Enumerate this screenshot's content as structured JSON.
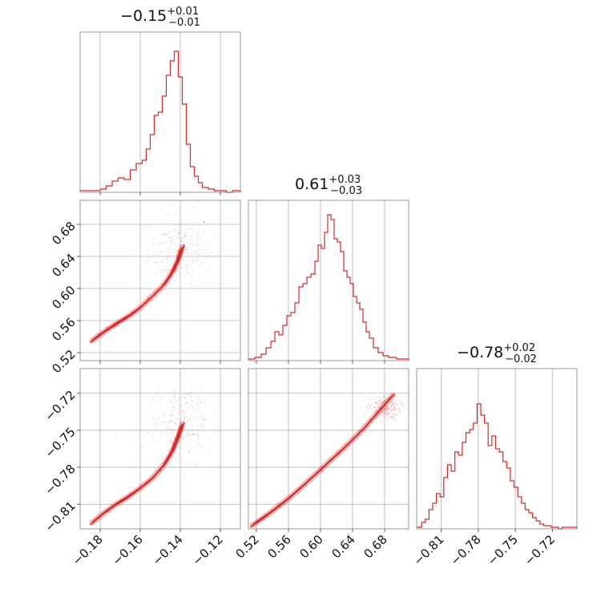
{
  "chart_data": {
    "type": "corner",
    "color": "#d62728",
    "grid": true,
    "parameters": [
      {
        "median": "−0.15",
        "plus": "+0.01",
        "minus": "−0.01",
        "range": [
          -0.19,
          -0.11
        ],
        "ticks": [
          -0.18,
          -0.16,
          -0.14,
          -0.12
        ],
        "tick_labels": [
          "−0.18",
          "−0.16",
          "−0.14",
          "−0.12"
        ],
        "hist_x": [
          -0.19,
          -0.184,
          -0.18,
          -0.177,
          -0.174,
          -0.171,
          -0.168,
          -0.165,
          -0.162,
          -0.159,
          -0.157,
          -0.155,
          -0.153,
          -0.151,
          -0.149,
          -0.147,
          -0.145,
          -0.143,
          -0.141,
          -0.139,
          -0.137,
          -0.135,
          -0.133,
          -0.131,
          -0.129,
          -0.126,
          -0.123,
          -0.12,
          -0.117,
          -0.114,
          -0.11
        ],
        "hist_y": [
          0.01,
          0.01,
          0.02,
          0.04,
          0.07,
          0.09,
          0.08,
          0.14,
          0.18,
          0.2,
          0.27,
          0.36,
          0.48,
          0.5,
          0.6,
          0.73,
          0.82,
          0.88,
          0.72,
          0.55,
          0.3,
          0.16,
          0.1,
          0.06,
          0.03,
          0.02,
          0.01,
          0.01,
          0.0,
          0.01,
          0.0
        ]
      },
      {
        "median": "0.61",
        "plus": "+0.03",
        "minus": "−0.03",
        "range": [
          0.51,
          0.71
        ],
        "ticks": [
          0.52,
          0.56,
          0.6,
          0.64,
          0.68
        ],
        "tick_labels": [
          "0.52",
          "0.56",
          "0.60",
          "0.64",
          "0.68"
        ],
        "hist_x": [
          0.51,
          0.518,
          0.526,
          0.532,
          0.538,
          0.543,
          0.548,
          0.553,
          0.558,
          0.563,
          0.568,
          0.573,
          0.578,
          0.583,
          0.588,
          0.593,
          0.597,
          0.601,
          0.605,
          0.609,
          0.613,
          0.617,
          0.621,
          0.625,
          0.629,
          0.633,
          0.637,
          0.641,
          0.645,
          0.649,
          0.653,
          0.657,
          0.661,
          0.666,
          0.672,
          0.678,
          0.685,
          0.695,
          0.71
        ],
        "hist_y": [
          0.01,
          0.02,
          0.04,
          0.08,
          0.12,
          0.18,
          0.16,
          0.22,
          0.28,
          0.3,
          0.36,
          0.46,
          0.48,
          0.52,
          0.54,
          0.62,
          0.72,
          0.7,
          0.8,
          0.91,
          0.88,
          0.76,
          0.74,
          0.68,
          0.56,
          0.52,
          0.48,
          0.4,
          0.36,
          0.32,
          0.24,
          0.18,
          0.14,
          0.08,
          0.05,
          0.03,
          0.02,
          0.01,
          0.0
        ]
      },
      {
        "median": "−0.78",
        "plus": "+0.02",
        "minus": "−0.02",
        "range": [
          -0.83,
          -0.7
        ],
        "ticks": [
          -0.81,
          -0.78,
          -0.75,
          -0.72
        ],
        "tick_labels": [
          "−0.81",
          "−0.78",
          "−0.75",
          "−0.72"
        ],
        "hist_x": [
          -0.83,
          -0.826,
          -0.823,
          -0.82,
          -0.817,
          -0.814,
          -0.811,
          -0.808,
          -0.805,
          -0.802,
          -0.799,
          -0.796,
          -0.793,
          -0.79,
          -0.787,
          -0.784,
          -0.781,
          -0.778,
          -0.775,
          -0.772,
          -0.769,
          -0.766,
          -0.763,
          -0.76,
          -0.757,
          -0.754,
          -0.751,
          -0.748,
          -0.745,
          -0.742,
          -0.739,
          -0.736,
          -0.733,
          -0.73,
          -0.727,
          -0.724,
          -0.721,
          -0.718,
          -0.715,
          -0.712,
          -0.7
        ],
        "hist_y": [
          0.01,
          0.04,
          0.06,
          0.12,
          0.16,
          0.22,
          0.2,
          0.32,
          0.4,
          0.36,
          0.48,
          0.46,
          0.54,
          0.6,
          0.62,
          0.66,
          0.78,
          0.71,
          0.66,
          0.52,
          0.58,
          0.5,
          0.48,
          0.42,
          0.38,
          0.3,
          0.26,
          0.2,
          0.16,
          0.12,
          0.1,
          0.07,
          0.05,
          0.03,
          0.02,
          0.02,
          0.01,
          0.01,
          0.0,
          0.01,
          0.0
        ]
      }
    ],
    "pairs": [
      {
        "row": 1,
        "col": 0,
        "curve_x": [
          -0.184,
          -0.178,
          -0.172,
          -0.166,
          -0.16,
          -0.154,
          -0.148,
          -0.144,
          -0.141,
          -0.139
        ],
        "curve_y": [
          0.535,
          0.546,
          0.556,
          0.565,
          0.576,
          0.59,
          0.605,
          0.62,
          0.636,
          0.652
        ],
        "cloud_center": [
          -0.14,
          0.65
        ],
        "cloud_spread": [
          0.008,
          0.022
        ]
      },
      {
        "row": 2,
        "col": 0,
        "curve_x": [
          -0.184,
          -0.178,
          -0.172,
          -0.166,
          -0.16,
          -0.154,
          -0.148,
          -0.144,
          -0.141,
          -0.139
        ],
        "curve_y": [
          -0.825,
          -0.817,
          -0.81,
          -0.804,
          -0.797,
          -0.789,
          -0.778,
          -0.767,
          -0.755,
          -0.745
        ],
        "cloud_center": [
          -0.14,
          -0.742
        ],
        "cloud_spread": [
          0.008,
          0.016
        ]
      },
      {
        "row": 2,
        "col": 1,
        "curve_x": [
          0.515,
          0.535,
          0.555,
          0.575,
          0.595,
          0.615,
          0.635,
          0.655,
          0.675,
          0.69
        ],
        "curve_y": [
          -0.827,
          -0.818,
          -0.808,
          -0.797,
          -0.785,
          -0.773,
          -0.761,
          -0.748,
          -0.733,
          -0.722
        ],
        "cloud_center": [
          0.68,
          -0.732
        ],
        "cloud_spread": [
          0.01,
          0.005
        ]
      }
    ]
  }
}
